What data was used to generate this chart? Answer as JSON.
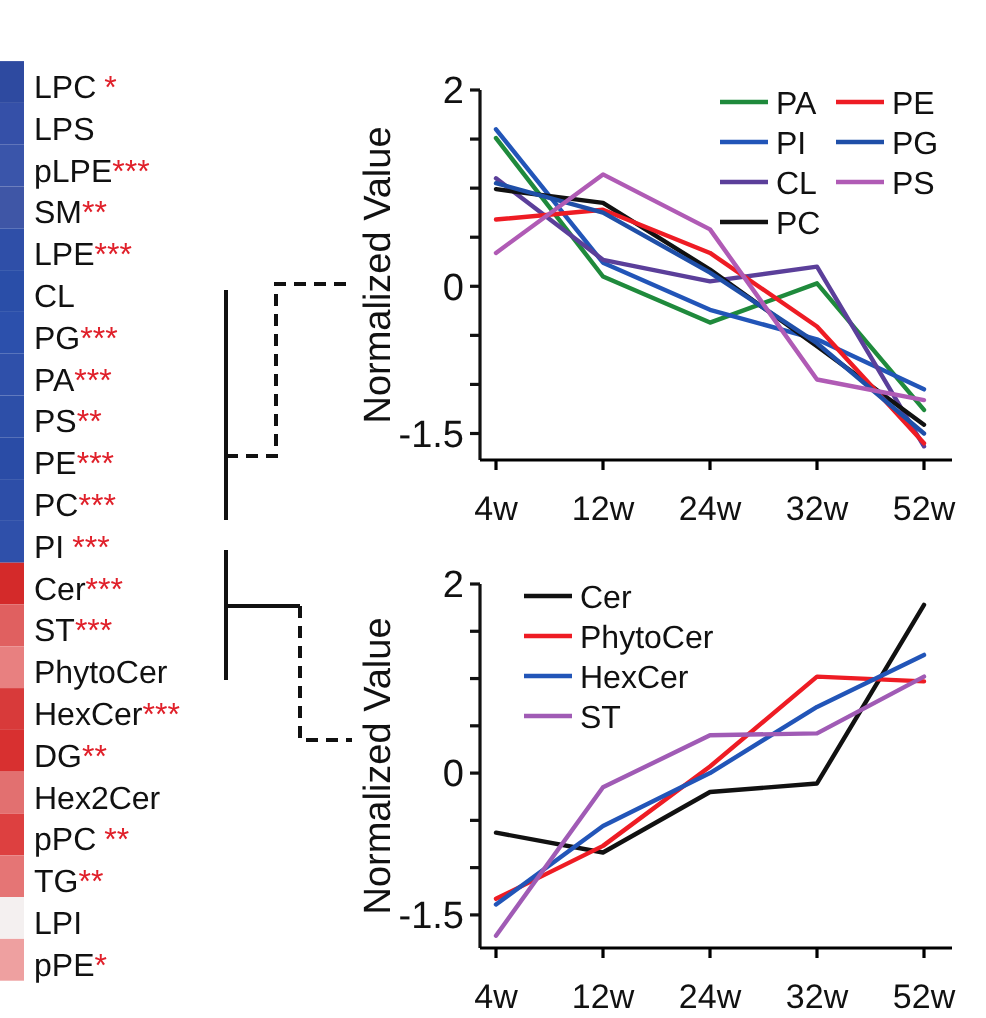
{
  "chart_data": [
    {
      "type": "other",
      "annotations": [
        "LPC *",
        "LPS",
        "pLPE***",
        "SM**",
        "LPE***",
        "CL",
        "PG***",
        "PA***",
        "PS**",
        "PE***",
        "PC***",
        "PI ***",
        "Cer***",
        "ST***",
        "PhytoCer",
        "HexCer***",
        "DG**",
        "Hex2Cer",
        "pPC **",
        "TG**",
        "LPI",
        "pPE*"
      ],
      "colors": [
        "#2e4aa0",
        "#3550a8",
        "#3a55aa",
        "#3f56a6",
        "#2f4fa8",
        "#2a4ea8",
        "#2c50ac",
        "#2f50aa",
        "#2d4fa8",
        "#2a4ca6",
        "#2d4ea8",
        "#2f50aa",
        "#d42a2a",
        "#e06060",
        "#e88080",
        "#d83a3a",
        "#d83030",
        "#e27070",
        "#dd4040",
        "#e57575",
        "#f4f0f0",
        "#eea0a0"
      ]
    },
    {
      "type": "line",
      "categories": [
        "4w",
        "12w",
        "24w",
        "32w",
        "52w"
      ],
      "ylabel": "Normalized Value",
      "ylim": [
        -1.77,
        2
      ],
      "yticks": [
        {
          "value": -1.5,
          "label": "-1.5"
        },
        {
          "value": -1,
          "label": null
        },
        {
          "value": -0.5,
          "label": null
        },
        {
          "value": 0,
          "label": "0"
        },
        {
          "value": 0.5,
          "label": null
        },
        {
          "value": 1,
          "label": null
        },
        {
          "value": 1.5,
          "label": null
        },
        {
          "value": 2,
          "label": "2"
        }
      ],
      "legend": "top right",
      "series": [
        {
          "name": "PA",
          "color": "#1f8a3c",
          "values": [
            1.51,
            0.1,
            -0.37,
            0.03,
            -1.26
          ]
        },
        {
          "name": "PI",
          "color": "#2255b8",
          "values": [
            1.6,
            0.24,
            -0.24,
            -0.54,
            -1.05
          ]
        },
        {
          "name": "CL",
          "color": "#5b3f9a",
          "values": [
            1.1,
            0.27,
            0.05,
            0.2,
            -1.63
          ]
        },
        {
          "name": "PC",
          "color": "#111111",
          "values": [
            0.99,
            0.85,
            0.17,
            -0.61,
            -1.41
          ]
        },
        {
          "name": "PE",
          "color": "#ee1c24",
          "values": [
            0.68,
            0.78,
            0.34,
            -0.41,
            -1.6
          ]
        },
        {
          "name": "PG",
          "color": "#1f4fa8",
          "values": [
            1.05,
            0.75,
            0.14,
            -0.58,
            -1.5
          ]
        },
        {
          "name": "PS",
          "color": "#b05bb5",
          "values": [
            0.34,
            1.14,
            0.58,
            -0.95,
            -1.16
          ]
        }
      ]
    },
    {
      "type": "line",
      "categories": [
        "4w",
        "12w",
        "24w",
        "32w",
        "52w"
      ],
      "ylabel": "Normalized Value",
      "ylim": [
        -1.85,
        2
      ],
      "yticks": [
        {
          "value": -1.5,
          "label": "-1.5"
        },
        {
          "value": -1,
          "label": null
        },
        {
          "value": -0.5,
          "label": null
        },
        {
          "value": 0,
          "label": "0"
        },
        {
          "value": 0.5,
          "label": null
        },
        {
          "value": 1,
          "label": null
        },
        {
          "value": 1.5,
          "label": null
        },
        {
          "value": 2,
          "label": "2"
        }
      ],
      "legend": "top left",
      "series": [
        {
          "name": "Cer",
          "color": "#111111",
          "values": [
            -0.63,
            -0.84,
            -0.2,
            -0.11,
            1.78
          ]
        },
        {
          "name": "PhytoCer",
          "color": "#ee1c24",
          "values": [
            -1.33,
            -0.77,
            0.07,
            1.02,
            0.97
          ]
        },
        {
          "name": "HexCer",
          "color": "#2255b8",
          "values": [
            -1.39,
            -0.56,
            0,
            0.7,
            1.25
          ]
        },
        {
          "name": "ST",
          "color": "#a05bb5",
          "values": [
            -1.72,
            -0.15,
            0.4,
            0.42,
            1.02
          ]
        }
      ]
    }
  ]
}
